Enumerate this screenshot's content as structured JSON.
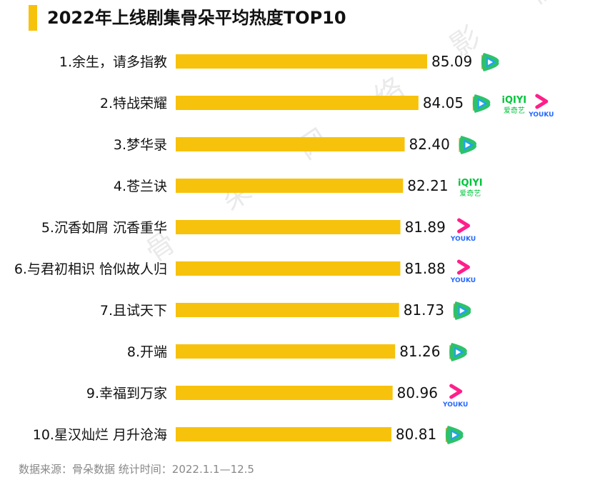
{
  "title": "2022年上线剧集骨朵平均热度TOP10",
  "footer": "数据来源：骨朵数据   统计时间：2022.1.1—12.5",
  "watermark": "骨 朵 网 络 影 视",
  "colors": {
    "bar": "#f7c20b",
    "accent": "#f7c20b",
    "tencent_green": "#2dc26a",
    "tencent_orange": "#f7a51c",
    "tencent_blue": "#1ea3f2",
    "iqiyi_green": "#00c43c",
    "youku_pink": "#ff1f8a",
    "youku_blue": "#2468ff"
  },
  "platforms": {
    "iqiyi": {
      "logo_text": "iQIYI",
      "logo_sub": "爱奇艺"
    },
    "youku": {
      "logo_text": "YOUKU"
    },
    "tencent": {
      "icon": "tencent-video-icon"
    }
  },
  "chart_data": {
    "type": "bar",
    "orientation": "horizontal",
    "title": "2022年上线剧集骨朵平均热度TOP10",
    "categories": [
      "1.余生，请多指教",
      "2.特战荣耀",
      "3.梦华录",
      "4.苍兰诀",
      "5.沉香如屑 沉香重华",
      "6.与君初相识 恰似故人归",
      "7.且试天下",
      "8.开端",
      "9.幸福到万家",
      "10.星汉灿烂 月升沧海"
    ],
    "values": [
      85.09,
      84.05,
      82.4,
      82.21,
      81.89,
      81.88,
      81.73,
      81.26,
      80.96,
      80.81
    ],
    "value_labels": [
      "85.09",
      "84.05",
      "82.40",
      "82.21",
      "81.89",
      "81.88",
      "81.73",
      "81.26",
      "80.96",
      "80.81"
    ],
    "platforms": [
      [
        "tencent"
      ],
      [
        "tencent",
        "iqiyi",
        "youku"
      ],
      [
        "tencent"
      ],
      [
        "iqiyi"
      ],
      [
        "youku"
      ],
      [
        "youku"
      ],
      [
        "tencent"
      ],
      [
        "tencent"
      ],
      [
        "youku"
      ],
      [
        "tencent"
      ]
    ],
    "xlabel": "",
    "ylabel": "",
    "grid": false,
    "legend": "none"
  }
}
